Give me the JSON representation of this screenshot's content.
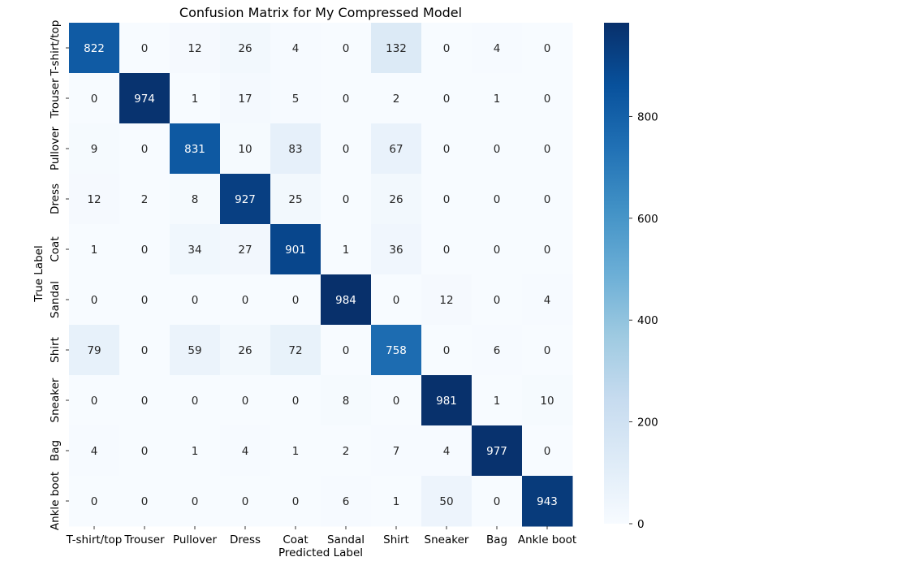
{
  "chart_data": {
    "type": "heatmap",
    "title": "Confusion Matrix for My Compressed Model",
    "xlabel": "Predicted Label",
    "ylabel": "True Label",
    "x_categories": [
      "T-shirt/top",
      "Trouser",
      "Pullover",
      "Dress",
      "Coat",
      "Sandal",
      "Shirt",
      "Sneaker",
      "Bag",
      "Ankle boot"
    ],
    "y_categories": [
      "T-shirt/top",
      "Trouser",
      "Pullover",
      "Dress",
      "Coat",
      "Sandal",
      "Shirt",
      "Sneaker",
      "Bag",
      "Ankle boot"
    ],
    "values": [
      [
        822,
        0,
        12,
        26,
        4,
        0,
        132,
        0,
        4,
        0
      ],
      [
        0,
        974,
        1,
        17,
        5,
        0,
        2,
        0,
        1,
        0
      ],
      [
        9,
        0,
        831,
        10,
        83,
        0,
        67,
        0,
        0,
        0
      ],
      [
        12,
        2,
        8,
        927,
        25,
        0,
        26,
        0,
        0,
        0
      ],
      [
        1,
        0,
        34,
        27,
        901,
        1,
        36,
        0,
        0,
        0
      ],
      [
        0,
        0,
        0,
        0,
        0,
        984,
        0,
        12,
        0,
        4
      ],
      [
        79,
        0,
        59,
        26,
        72,
        0,
        758,
        0,
        6,
        0
      ],
      [
        0,
        0,
        0,
        0,
        0,
        8,
        0,
        981,
        1,
        10
      ],
      [
        4,
        0,
        1,
        4,
        1,
        2,
        7,
        4,
        977,
        0
      ],
      [
        0,
        0,
        0,
        0,
        0,
        6,
        1,
        50,
        0,
        943
      ]
    ],
    "colormap": "Blues",
    "colorbar": {
      "range": [
        0,
        984
      ],
      "ticks": [
        0,
        200,
        400,
        600,
        800
      ],
      "tick_labels": [
        "0",
        "200",
        "400",
        "600",
        "800"
      ]
    },
    "annotations": true,
    "grid": false
  }
}
